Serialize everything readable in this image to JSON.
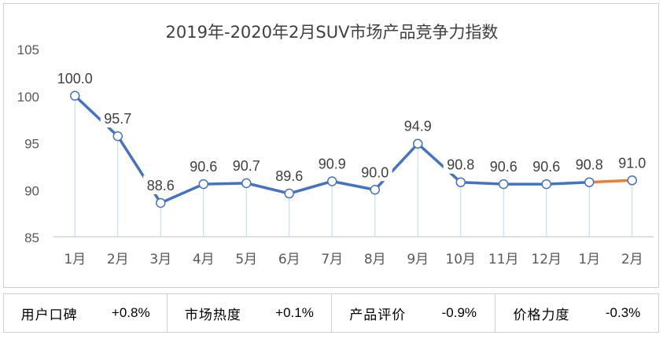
{
  "chart_data": {
    "type": "line",
    "title": "2019年-2020年2月SUV市场产品竞争力指数",
    "categories": [
      "1月",
      "2月",
      "3月",
      "4月",
      "5月",
      "6月",
      "7月",
      "8月",
      "9月",
      "10月",
      "11月",
      "12月",
      "1月",
      "2月"
    ],
    "series": [
      {
        "values": [
          100.0,
          95.7,
          88.6,
          90.6,
          90.7,
          89.6,
          90.9,
          90.0,
          94.9,
          90.8,
          90.6,
          90.6,
          90.8,
          91.0
        ]
      }
    ],
    "data_labels": [
      "100.0",
      "95.7",
      "88.6",
      "90.6",
      "90.7",
      "89.6",
      "90.9",
      "90.0",
      "94.9",
      "90.8",
      "90.6",
      "90.6",
      "90.8",
      "91.0"
    ],
    "ylim": [
      85,
      105
    ],
    "yticks": [
      85,
      90,
      95,
      100,
      105
    ],
    "grid": false,
    "colors": {
      "line": "#4472C4",
      "highlight_segment": "#ED7D31",
      "marker_fill": "#ffffff",
      "drop_line": "#BDD7EE"
    }
  },
  "stats": [
    {
      "label": "用户口碑",
      "value": "+0.8%"
    },
    {
      "label": "市场热度",
      "value": "+0.1%"
    },
    {
      "label": "产品评价",
      "value": "-0.9%"
    },
    {
      "label": "价格力度",
      "value": "-0.3%"
    }
  ]
}
